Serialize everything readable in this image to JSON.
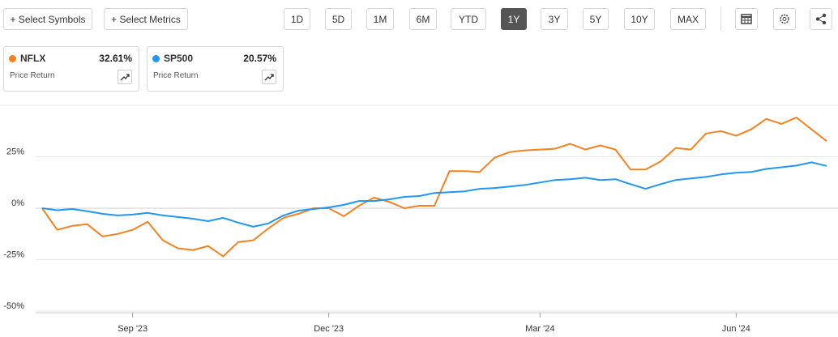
{
  "toolbar": {
    "buttons": [
      {
        "label": "+ Select Symbols"
      },
      {
        "label": "+ Select Metrics"
      }
    ],
    "ranges": [
      {
        "label": "1D"
      },
      {
        "label": "5D"
      },
      {
        "label": "1M"
      },
      {
        "label": "6M"
      },
      {
        "label": "YTD"
      },
      {
        "label": "1Y",
        "active": true
      },
      {
        "label": "3Y"
      },
      {
        "label": "5Y"
      },
      {
        "label": "10Y"
      },
      {
        "label": "MAX"
      }
    ]
  },
  "cards": [
    {
      "symbol": "NFLX",
      "value": "32.61%",
      "metric": "Price Return",
      "color": "#f5821f"
    },
    {
      "symbol": "SP500",
      "value": "20.57%",
      "metric": "Price Return",
      "color": "#2196f3"
    }
  ],
  "chart_data": {
    "type": "line",
    "categories": [
      null,
      null,
      null,
      null,
      null,
      null,
      "Sep '23",
      null,
      null,
      null,
      null,
      null,
      null,
      null,
      null,
      null,
      null,
      null,
      null,
      "Dec '23",
      null,
      null,
      null,
      null,
      null,
      null,
      null,
      null,
      null,
      null,
      null,
      null,
      null,
      "Mar '24",
      null,
      null,
      null,
      null,
      null,
      null,
      null,
      null,
      null,
      null,
      null,
      null,
      "Jun '24",
      null,
      null,
      null,
      null,
      null,
      null
    ],
    "series": [
      {
        "name": "NFLX",
        "color": "#f5821f",
        "values": [
          0,
          -10.5,
          -8.6,
          -7.8,
          -13.7,
          -12.5,
          -10.5,
          -6.6,
          -15.6,
          -19.5,
          -20.3,
          -18.4,
          -23.4,
          -16.4,
          -15.6,
          -9.8,
          -4.7,
          -2.7,
          0,
          0,
          -3.9,
          1.2,
          5.1,
          3.1,
          0,
          1.2,
          1.2,
          18,
          18,
          17.6,
          24.6,
          27.3,
          28.1,
          28.5,
          28.9,
          31.3,
          28.5,
          30.5,
          28.5,
          18.8,
          18.8,
          22.7,
          29.3,
          28.5,
          36.3,
          37.5,
          35.2,
          38.3,
          43.4,
          41,
          44.1,
          38.3,
          32.61
        ]
      },
      {
        "name": "SP500",
        "color": "#2196f3",
        "values": [
          0,
          -1,
          -0.4,
          -1.5,
          -2.7,
          -3.5,
          -3.1,
          -2.3,
          -3.5,
          -4.3,
          -5.1,
          -6.3,
          -4.7,
          -7,
          -9,
          -7.4,
          -3.5,
          -1.2,
          -0.4,
          0.4,
          1.6,
          3.5,
          3.5,
          4.3,
          5.5,
          5.9,
          7.4,
          7.8,
          8.2,
          9.4,
          9.8,
          10.5,
          11.3,
          12.5,
          13.7,
          14.1,
          14.8,
          13.7,
          14.1,
          11.7,
          9.4,
          11.7,
          13.7,
          14.5,
          15.2,
          16.4,
          17.2,
          17.6,
          19.1,
          19.9,
          20.7,
          22.3,
          20.57
        ]
      }
    ],
    "ylim": [
      -50,
      50
    ],
    "yticks": [
      {
        "value": -50,
        "label": "-50%"
      },
      {
        "value": -25,
        "label": "-25%"
      },
      {
        "value": 0,
        "label": "0%"
      },
      {
        "value": 25,
        "label": "25%"
      }
    ],
    "grid": true
  }
}
